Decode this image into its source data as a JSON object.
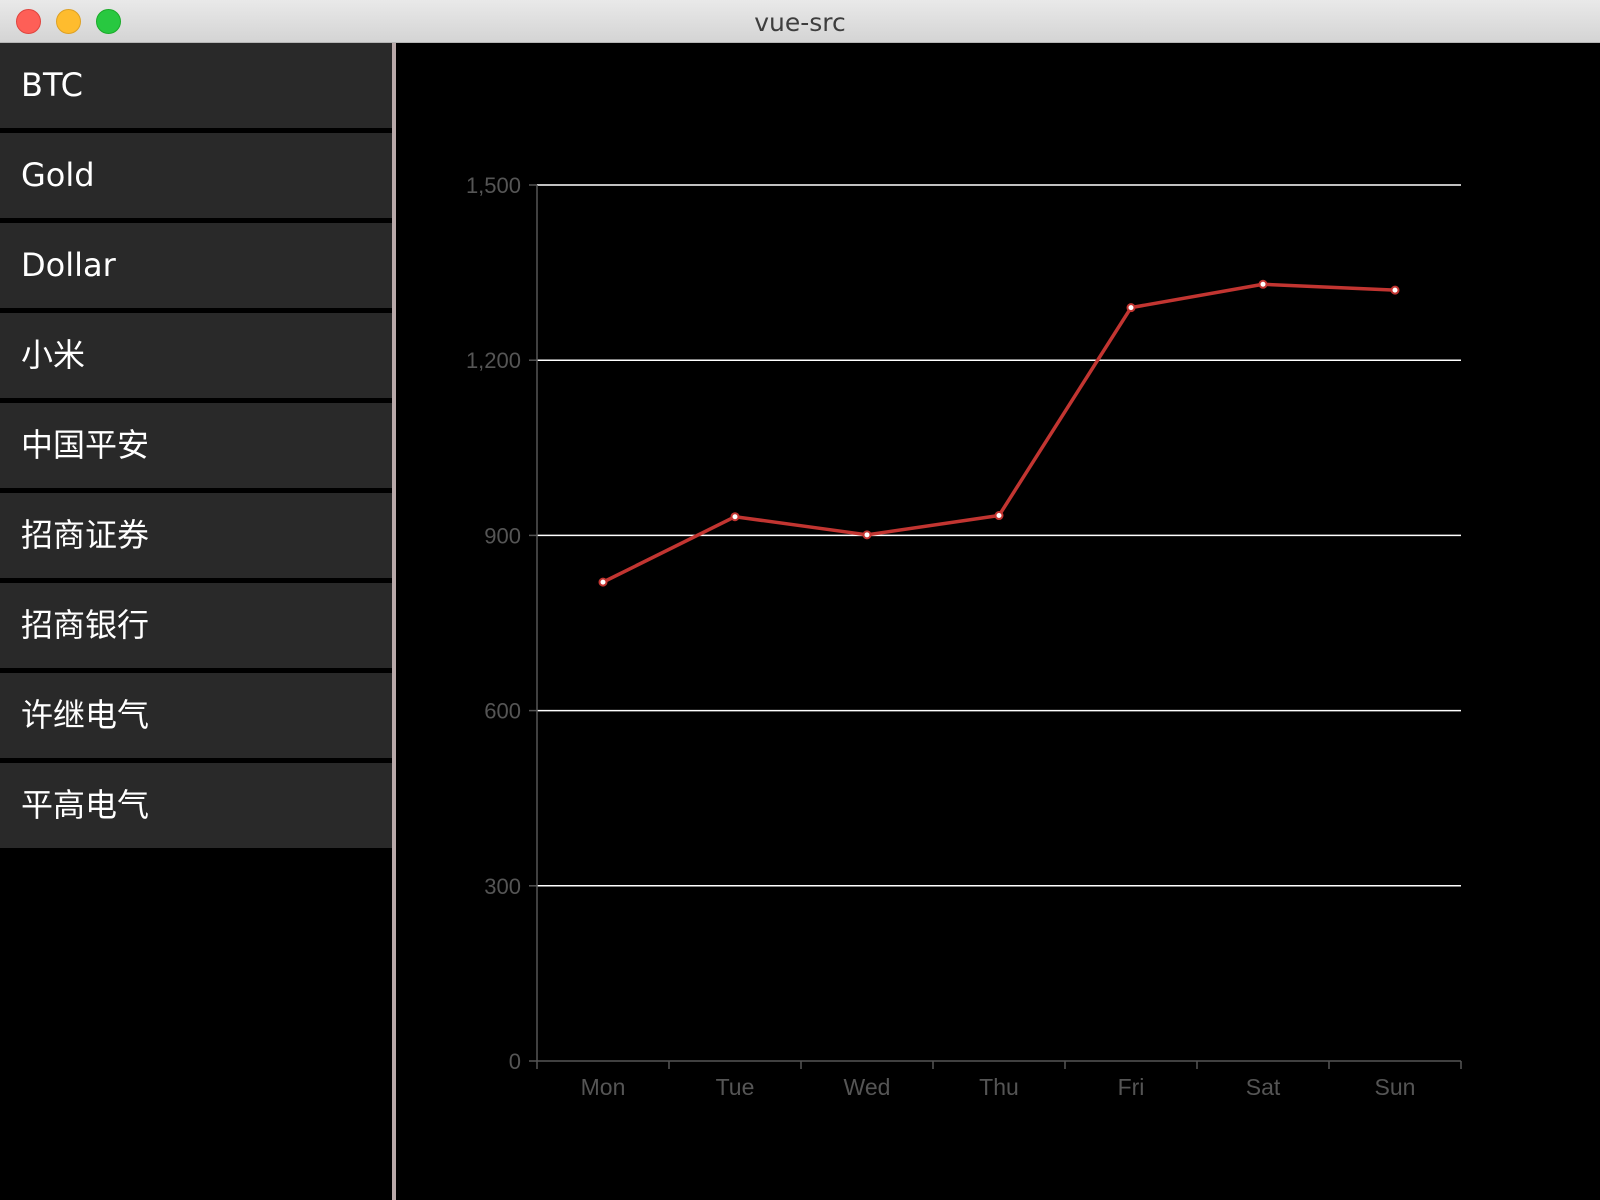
{
  "window": {
    "title": "vue-src"
  },
  "sidebar": {
    "items": [
      {
        "label": "BTC"
      },
      {
        "label": "Gold"
      },
      {
        "label": "Dollar"
      },
      {
        "label": "小米"
      },
      {
        "label": "中国平安"
      },
      {
        "label": "招商证券"
      },
      {
        "label": "招商银行"
      },
      {
        "label": "许继电气"
      },
      {
        "label": "平高电气"
      }
    ]
  },
  "chart_data": {
    "type": "line",
    "categories": [
      "Mon",
      "Tue",
      "Wed",
      "Thu",
      "Fri",
      "Sat",
      "Sun"
    ],
    "values": [
      820,
      932,
      901,
      934,
      1290,
      1330,
      1320
    ],
    "yticks": [
      "0",
      "300",
      "600",
      "900",
      "1,200",
      "1,500"
    ],
    "ylim": [
      0,
      1500
    ],
    "grid": true,
    "line_color": "#c23531"
  }
}
